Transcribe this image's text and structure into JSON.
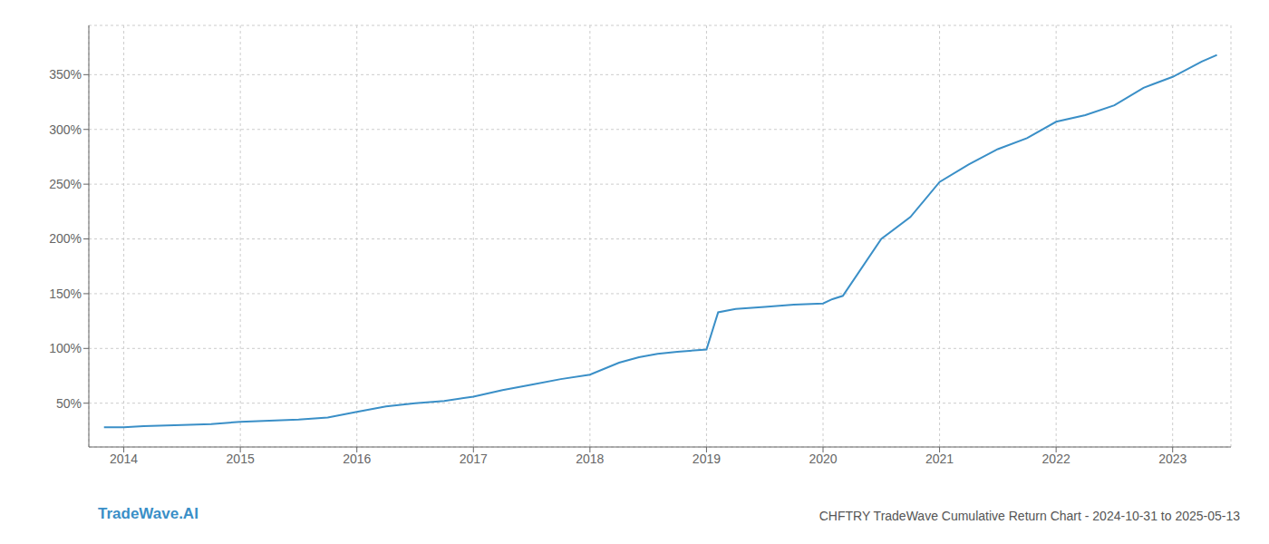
{
  "chart_data": {
    "type": "line",
    "title": "CHFTRY TradeWave Cumulative Return Chart - 2024-10-31 to 2025-05-13",
    "annotations": [
      "TradeWave.AI"
    ],
    "x": [
      2013.83,
      2014.0,
      2014.17,
      2014.5,
      2014.75,
      2015.0,
      2015.25,
      2015.5,
      2015.75,
      2016.0,
      2016.25,
      2016.5,
      2016.75,
      2017.0,
      2017.25,
      2017.5,
      2017.75,
      2018.0,
      2018.25,
      2018.42,
      2018.58,
      2018.75,
      2019.0,
      2019.1,
      2019.25,
      2019.5,
      2019.75,
      2020.0,
      2020.08,
      2020.17,
      2020.5,
      2020.75,
      2021.0,
      2021.25,
      2021.5,
      2021.75,
      2022.0,
      2022.25,
      2022.5,
      2022.75,
      2023.0,
      2023.25,
      2023.38
    ],
    "values": [
      28,
      28,
      29,
      30,
      31,
      33,
      34,
      35,
      37,
      42,
      47,
      50,
      52,
      56,
      62,
      67,
      72,
      76,
      87,
      92,
      95,
      97,
      99,
      133,
      136,
      138,
      140,
      141,
      145,
      148,
      200,
      220,
      252,
      268,
      282,
      292,
      307,
      313,
      322,
      338,
      348,
      362,
      368
    ],
    "color": "#3a8fc7",
    "xlim": [
      2013.7,
      2023.5
    ],
    "ylim": [
      10,
      395
    ],
    "xticks": [
      2014,
      2015,
      2016,
      2017,
      2018,
      2019,
      2020,
      2021,
      2022,
      2023
    ],
    "yticks": [
      {
        "value": 50,
        "label": "50%"
      },
      {
        "value": 100,
        "label": "100%"
      },
      {
        "value": 150,
        "label": "150%"
      },
      {
        "value": 200,
        "label": "200%"
      },
      {
        "value": 250,
        "label": "250%"
      },
      {
        "value": 300,
        "label": "300%"
      },
      {
        "value": 350,
        "label": "350%"
      }
    ],
    "grid": true
  }
}
